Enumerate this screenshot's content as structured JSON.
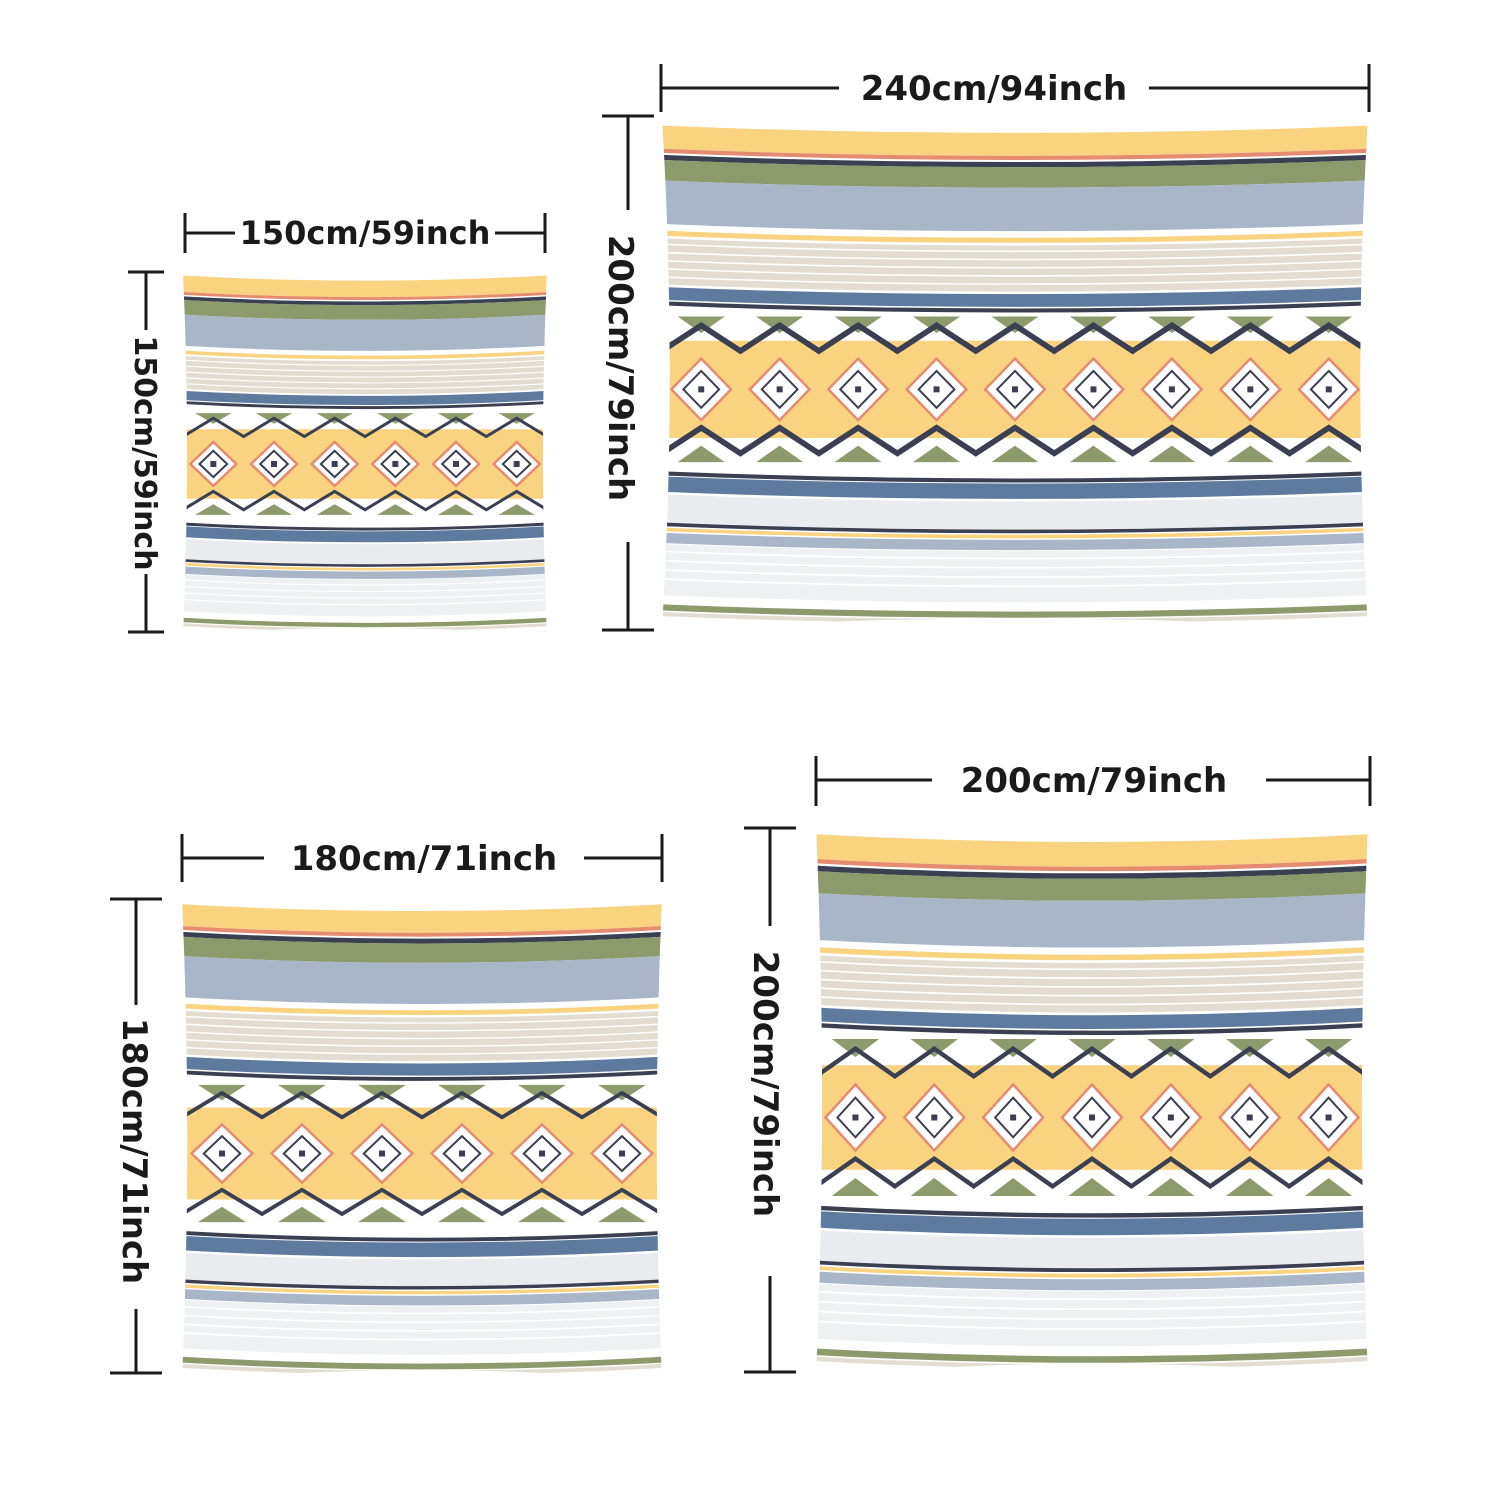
{
  "variants": [
    {
      "width_label": "150cm/59inch",
      "height_label": "150cm/59inch"
    },
    {
      "width_label": "240cm/94inch",
      "height_label": "200cm/79inch"
    },
    {
      "width_label": "180cm/71inch",
      "height_label": "180cm/71inch"
    },
    {
      "width_label": "200cm/79inch",
      "height_label": "200cm/79inch"
    }
  ],
  "colors": {
    "yellow": "#f9d380",
    "olive": "#8c9a6c",
    "blue_gray": "#a9b6c8",
    "steel_blue": "#5e7a9e",
    "navy": "#3b3f52",
    "beige": "#e2ddd0",
    "coral": "#e48b70",
    "pale_gray": "#e9ebee",
    "ink": "#1a1a1a"
  }
}
